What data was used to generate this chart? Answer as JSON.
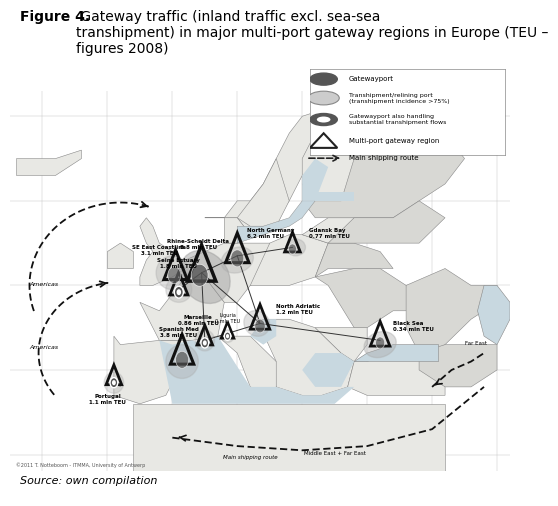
{
  "title_bold": "Figure 4.",
  "title_rest": " Gateway traffic (inland traffic excl. sea-sea\ntranshipment) in major multi-port gateway regions in Europe (TEU –\nfigures 2008)",
  "source_text": "Source: own compilation",
  "bg_color": "#ffffff",
  "fig_width": 5.0,
  "fig_height": 4.91,
  "title_fontsize": 10,
  "source_fontsize": 8,
  "map_color": "#c8c8c8",
  "ocean_color": "#e0e0e0",
  "land_color": "#f0f0f0",
  "gateway_dark": "#555555",
  "gateway_light": "#bbbbbb",
  "border_color": "#999999",
  "text_color": "#000000",
  "arrow_color": "#222222"
}
